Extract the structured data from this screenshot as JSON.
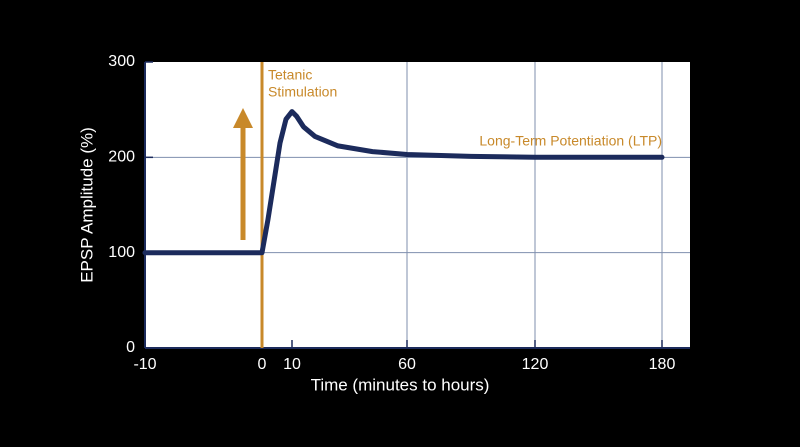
{
  "chart_data": {
    "type": "line",
    "x_label": "Time (minutes to hours)",
    "y_label": "EPSP Amplitude (%)",
    "x": [
      -10,
      0,
      2,
      4,
      6,
      8,
      10,
      12,
      15,
      20,
      30,
      45,
      60,
      90,
      120,
      150,
      180
    ],
    "series": [
      {
        "name": "EPSP amplitude",
        "color": "#1c2b5c",
        "values": [
          100,
          100,
          135,
          175,
          215,
          240,
          248,
          243,
          232,
          222,
          212,
          206,
          203,
          201,
          200,
          200,
          200
        ]
      }
    ],
    "xlim": [
      -10,
      180
    ],
    "xticks": [
      -10,
      0,
      10,
      60,
      120,
      180
    ],
    "ylim": [
      0,
      300
    ],
    "yticks": [
      0,
      100,
      200,
      300
    ],
    "grid": true,
    "annotation_color": "#c8892a",
    "annotations": [
      {
        "lines": [
          "Tetanic",
          "Stimulation"
        ]
      },
      {
        "lines": [
          "Long-Term Potentiation (LTP)"
        ]
      }
    ]
  }
}
